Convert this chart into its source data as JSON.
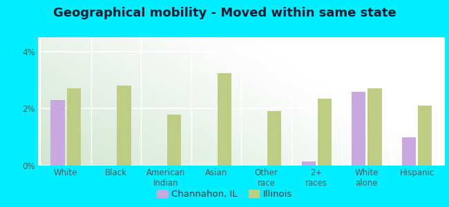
{
  "title": "Geographical mobility - Moved within same state",
  "categories": [
    "White",
    "Black",
    "American\nIndian",
    "Asian",
    "Other\nrace",
    "2+\nraces",
    "White\nalone",
    "Hispanic"
  ],
  "channahon_values": [
    2.3,
    0.0,
    0.0,
    0.0,
    0.0,
    0.15,
    2.6,
    1.0
  ],
  "illinois_values": [
    2.7,
    2.8,
    1.8,
    3.25,
    1.9,
    2.35,
    2.7,
    2.1
  ],
  "channahon_color": "#c9a8e0",
  "illinois_color": "#bfcc84",
  "background_outer": "#00eeff",
  "ylim": [
    0,
    4.5
  ],
  "yticks": [
    0,
    2,
    4
  ],
  "ytick_labels": [
    "0%",
    "2%",
    "4%"
  ],
  "bar_width": 0.28,
  "legend_channahon": "Channahon, IL",
  "legend_illinois": "Illinois",
  "title_fontsize": 13,
  "tick_fontsize": 8.5,
  "legend_fontsize": 9.5
}
